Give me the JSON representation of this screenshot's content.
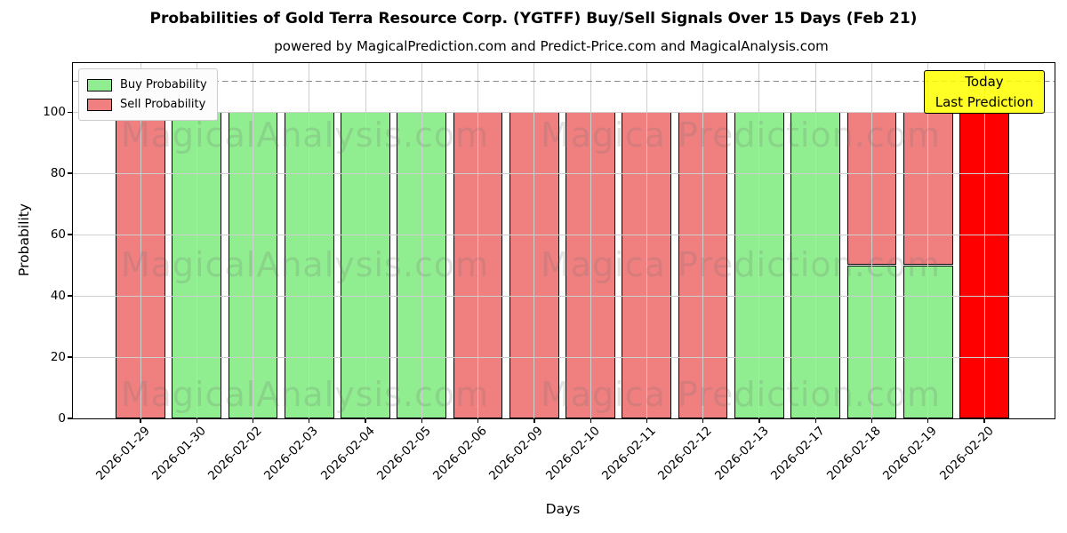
{
  "title": "Probabilities of Gold Terra Resource Corp. (YGTFF) Buy/Sell Signals Over 15 Days (Feb 21)",
  "subtitle": "powered by MagicalPrediction.com and Predict-Price.com and MagicalAnalysis.com",
  "watermarks": {
    "left": "MagicalAnalysis.com",
    "right": "Magica Prediction.com"
  },
  "colors": {
    "buy": "#90ee90",
    "sell": "#f08080",
    "today_bar": "#ff0000",
    "annotation_bg": "rgba(255,255,0,0.85)",
    "grid": "#cfcfcf",
    "dashed_line": "#8a8a8a"
  },
  "chart_data": {
    "type": "bar",
    "stacked": true,
    "title": "Probabilities of Gold Terra Resource Corp. (YGTFF) Buy/Sell Signals Over 15 Days (Feb 21)",
    "subtitle": "powered by MagicalPrediction.com and Predict-Price.com and MagicalAnalysis.com",
    "xlabel": "Days",
    "ylabel": "Probability",
    "categories": [
      "2026-01-29",
      "2026-01-30",
      "2026-02-02",
      "2026-02-03",
      "2026-02-04",
      "2026-02-05",
      "2026-02-06",
      "2026-02-09",
      "2026-02-10",
      "2026-02-11",
      "2026-02-12",
      "2026-02-13",
      "2026-02-17",
      "2026-02-18",
      "2026-02-19",
      "2026-02-20"
    ],
    "series": [
      {
        "name": "Buy Probability",
        "color": "#90ee90",
        "values": [
          0,
          100,
          100,
          100,
          100,
          100,
          0,
          0,
          0,
          0,
          0,
          100,
          100,
          50,
          50,
          0
        ]
      },
      {
        "name": "Sell Probability",
        "color": "#f08080",
        "values": [
          100,
          0,
          0,
          0,
          0,
          0,
          100,
          100,
          100,
          100,
          100,
          0,
          0,
          50,
          50,
          100
        ]
      }
    ],
    "today": {
      "index": 15,
      "color": "#ff0000",
      "label_line1": "Today",
      "label_line2": "Last Prediction"
    },
    "yticks": [
      0,
      20,
      40,
      60,
      80,
      100
    ],
    "ylim": [
      0,
      116
    ],
    "dashed_line_y": 110,
    "grid": true,
    "legend_position": "upper left"
  }
}
